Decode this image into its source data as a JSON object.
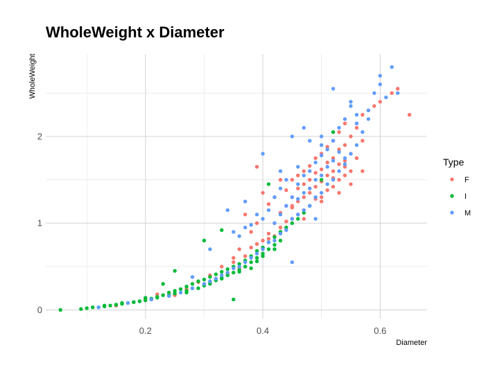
{
  "chart_data": {
    "type": "scatter",
    "title": "WholeWeight x Diameter",
    "xlabel": "Diameter",
    "ylabel": "WholeWeight",
    "xlim": [
      0.03,
      0.68
    ],
    "ylim": [
      -0.1,
      2.95
    ],
    "xticks": [
      0.2,
      0.4,
      0.6
    ],
    "yticks": [
      0,
      1,
      2
    ],
    "grid": true,
    "legend": {
      "title": "Type",
      "placement": "right",
      "entries": [
        {
          "name": "F",
          "color": "#F8766D"
        },
        {
          "name": "I",
          "color": "#00BA38"
        },
        {
          "name": "M",
          "color": "#619CFF"
        }
      ]
    },
    "series": [
      {
        "name": "F",
        "color": "#F8766D",
        "x": [
          0.15,
          0.2,
          0.22,
          0.25,
          0.27,
          0.29,
          0.3,
          0.31,
          0.32,
          0.33,
          0.34,
          0.35,
          0.35,
          0.36,
          0.37,
          0.37,
          0.38,
          0.38,
          0.39,
          0.39,
          0.4,
          0.4,
          0.41,
          0.41,
          0.42,
          0.42,
          0.42,
          0.43,
          0.43,
          0.43,
          0.44,
          0.44,
          0.44,
          0.45,
          0.45,
          0.45,
          0.45,
          0.46,
          0.46,
          0.46,
          0.46,
          0.47,
          0.47,
          0.47,
          0.47,
          0.48,
          0.48,
          0.48,
          0.48,
          0.49,
          0.49,
          0.49,
          0.49,
          0.5,
          0.5,
          0.5,
          0.5,
          0.51,
          0.51,
          0.51,
          0.51,
          0.52,
          0.52,
          0.52,
          0.52,
          0.53,
          0.53,
          0.53,
          0.53,
          0.54,
          0.54,
          0.54,
          0.54,
          0.55,
          0.55,
          0.55,
          0.56,
          0.56,
          0.57,
          0.57,
          0.58,
          0.59,
          0.6,
          0.62,
          0.63,
          0.65,
          0.36,
          0.41,
          0.44,
          0.47,
          0.5,
          0.53,
          0.55,
          0.57,
          0.39,
          0.45,
          0.48,
          0.52,
          0.54,
          0.43
        ],
        "y": [
          0.05,
          0.13,
          0.18,
          0.17,
          0.24,
          0.32,
          0.3,
          0.4,
          0.36,
          0.5,
          0.42,
          0.55,
          0.6,
          0.48,
          0.62,
          1.1,
          0.72,
          0.9,
          0.76,
          1.65,
          0.8,
          1.35,
          0.88,
          1.22,
          0.85,
          1.0,
          1.3,
          0.95,
          1.12,
          1.5,
          1.02,
          1.2,
          1.38,
          1.05,
          1.18,
          1.3,
          1.5,
          1.1,
          1.25,
          1.4,
          1.55,
          1.15,
          1.3,
          1.45,
          1.6,
          1.2,
          1.35,
          1.5,
          1.66,
          1.28,
          1.42,
          1.58,
          1.75,
          1.3,
          1.48,
          1.62,
          1.8,
          1.38,
          1.55,
          1.7,
          1.88,
          1.42,
          1.6,
          1.75,
          1.95,
          1.5,
          1.68,
          1.85,
          2.05,
          1.55,
          1.72,
          1.9,
          2.15,
          1.6,
          1.8,
          2.0,
          1.75,
          2.1,
          1.95,
          2.25,
          2.3,
          2.35,
          2.4,
          2.5,
          2.55,
          2.25,
          0.7,
          0.82,
          0.95,
          1.05,
          1.25,
          1.35,
          1.45,
          1.6,
          1.0,
          1.2,
          1.4,
          1.52,
          1.65,
          0.9
        ]
      },
      {
        "name": "I",
        "color": "#00BA38",
        "x": [
          0.055,
          0.09,
          0.1,
          0.11,
          0.12,
          0.13,
          0.14,
          0.15,
          0.16,
          0.17,
          0.18,
          0.19,
          0.2,
          0.2,
          0.21,
          0.22,
          0.23,
          0.23,
          0.24,
          0.25,
          0.25,
          0.26,
          0.27,
          0.27,
          0.28,
          0.29,
          0.29,
          0.3,
          0.3,
          0.31,
          0.31,
          0.32,
          0.32,
          0.33,
          0.33,
          0.34,
          0.34,
          0.35,
          0.35,
          0.36,
          0.36,
          0.37,
          0.37,
          0.38,
          0.38,
          0.39,
          0.39,
          0.4,
          0.4,
          0.41,
          0.41,
          0.42,
          0.42,
          0.43,
          0.43,
          0.44,
          0.45,
          0.46,
          0.47,
          0.48,
          0.5,
          0.52,
          0.13,
          0.16,
          0.19,
          0.22,
          0.25,
          0.28,
          0.31,
          0.34,
          0.37,
          0.4,
          0.15,
          0.18,
          0.21,
          0.24,
          0.27,
          0.3,
          0.33,
          0.36,
          0.39,
          0.42,
          0.35,
          0.38,
          0.41,
          0.3,
          0.33
        ],
        "y": [
          0.0,
          0.01,
          0.02,
          0.03,
          0.03,
          0.04,
          0.05,
          0.06,
          0.07,
          0.08,
          0.09,
          0.1,
          0.11,
          0.14,
          0.13,
          0.15,
          0.17,
          0.3,
          0.2,
          0.22,
          0.45,
          0.24,
          0.27,
          0.2,
          0.3,
          0.33,
          0.25,
          0.35,
          0.28,
          0.38,
          0.3,
          0.41,
          0.34,
          0.44,
          0.37,
          0.47,
          0.4,
          0.5,
          0.43,
          0.53,
          0.46,
          0.57,
          0.5,
          0.62,
          0.55,
          0.68,
          0.6,
          0.72,
          0.65,
          0.78,
          0.7,
          0.84,
          0.75,
          0.9,
          0.8,
          0.95,
          1.0,
          1.05,
          1.12,
          1.2,
          1.5,
          2.05,
          0.05,
          0.08,
          0.1,
          0.14,
          0.19,
          0.25,
          0.32,
          0.4,
          0.5,
          0.62,
          0.06,
          0.09,
          0.12,
          0.17,
          0.22,
          0.28,
          0.36,
          0.44,
          0.56,
          0.7,
          0.12,
          0.48,
          1.45,
          0.8,
          0.92
        ]
      },
      {
        "name": "M",
        "color": "#619CFF",
        "x": [
          0.12,
          0.17,
          0.21,
          0.24,
          0.26,
          0.28,
          0.3,
          0.31,
          0.32,
          0.33,
          0.34,
          0.35,
          0.35,
          0.36,
          0.36,
          0.37,
          0.37,
          0.38,
          0.38,
          0.39,
          0.39,
          0.4,
          0.4,
          0.41,
          0.41,
          0.42,
          0.42,
          0.42,
          0.43,
          0.43,
          0.43,
          0.44,
          0.44,
          0.44,
          0.45,
          0.45,
          0.45,
          0.46,
          0.46,
          0.46,
          0.46,
          0.47,
          0.47,
          0.47,
          0.48,
          0.48,
          0.48,
          0.48,
          0.49,
          0.49,
          0.49,
          0.5,
          0.5,
          0.5,
          0.5,
          0.51,
          0.51,
          0.51,
          0.52,
          0.52,
          0.52,
          0.53,
          0.53,
          0.53,
          0.54,
          0.54,
          0.55,
          0.55,
          0.56,
          0.56,
          0.57,
          0.58,
          0.59,
          0.6,
          0.61,
          0.62,
          0.63,
          0.6,
          0.55,
          0.52,
          0.5,
          0.47,
          0.45,
          0.43,
          0.4,
          0.37,
          0.34,
          0.31,
          0.28,
          0.56,
          0.58,
          0.54,
          0.49
        ],
        "y": [
          0.03,
          0.08,
          0.12,
          0.16,
          0.2,
          0.25,
          0.3,
          0.33,
          0.36,
          0.4,
          0.43,
          0.48,
          0.9,
          0.5,
          0.85,
          0.55,
          0.95,
          0.6,
          0.98,
          0.65,
          1.1,
          0.7,
          1.05,
          0.78,
          1.15,
          0.8,
          1.0,
          1.3,
          0.88,
          1.1,
          1.4,
          0.92,
          1.2,
          1.5,
          0.55,
          1.05,
          1.3,
          1.1,
          1.28,
          1.45,
          1.65,
          1.15,
          1.35,
          1.55,
          1.2,
          1.4,
          1.6,
          1.95,
          1.3,
          1.5,
          1.7,
          1.35,
          1.55,
          1.78,
          2.0,
          1.45,
          1.65,
          1.85,
          1.5,
          1.72,
          1.95,
          1.6,
          1.82,
          2.1,
          1.68,
          2.2,
          1.8,
          2.35,
          1.9,
          2.25,
          2.05,
          2.3,
          2.5,
          2.7,
          2.45,
          2.8,
          2.5,
          2.6,
          2.4,
          2.55,
          1.9,
          2.1,
          2.0,
          1.6,
          1.8,
          1.25,
          1.15,
          0.7,
          0.38,
          2.15,
          2.2,
          1.75,
          1.05
        ]
      }
    ]
  }
}
